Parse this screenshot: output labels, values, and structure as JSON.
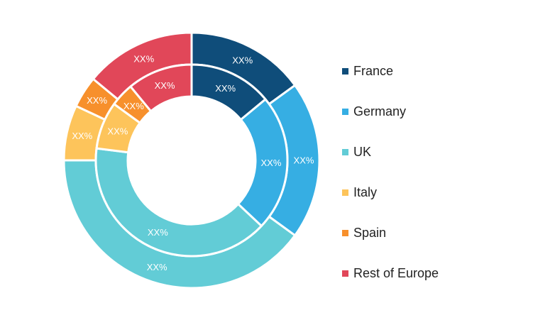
{
  "chart_data": {
    "type": "pie",
    "categories": [
      "France",
      "Germany",
      "UK",
      "Italy",
      "Spain",
      "Rest of Europe"
    ],
    "colors": [
      "#0f4d7a",
      "#36aee3",
      "#62ccd6",
      "#fdc45b",
      "#f7902c",
      "#e14759"
    ],
    "legend_position": "right",
    "series": [
      {
        "ring": "outer",
        "values": [
          15,
          20,
          40,
          7,
          4,
          14
        ],
        "labels": [
          "XX%",
          "XX%",
          "XX%",
          "XX%",
          "XX%",
          "XX%"
        ]
      },
      {
        "ring": "inner",
        "values": [
          14,
          23,
          40,
          8,
          4,
          11
        ],
        "labels": [
          "XX%",
          "XX%",
          "XX%",
          "XX%",
          "XX%",
          "XX%"
        ]
      }
    ]
  }
}
